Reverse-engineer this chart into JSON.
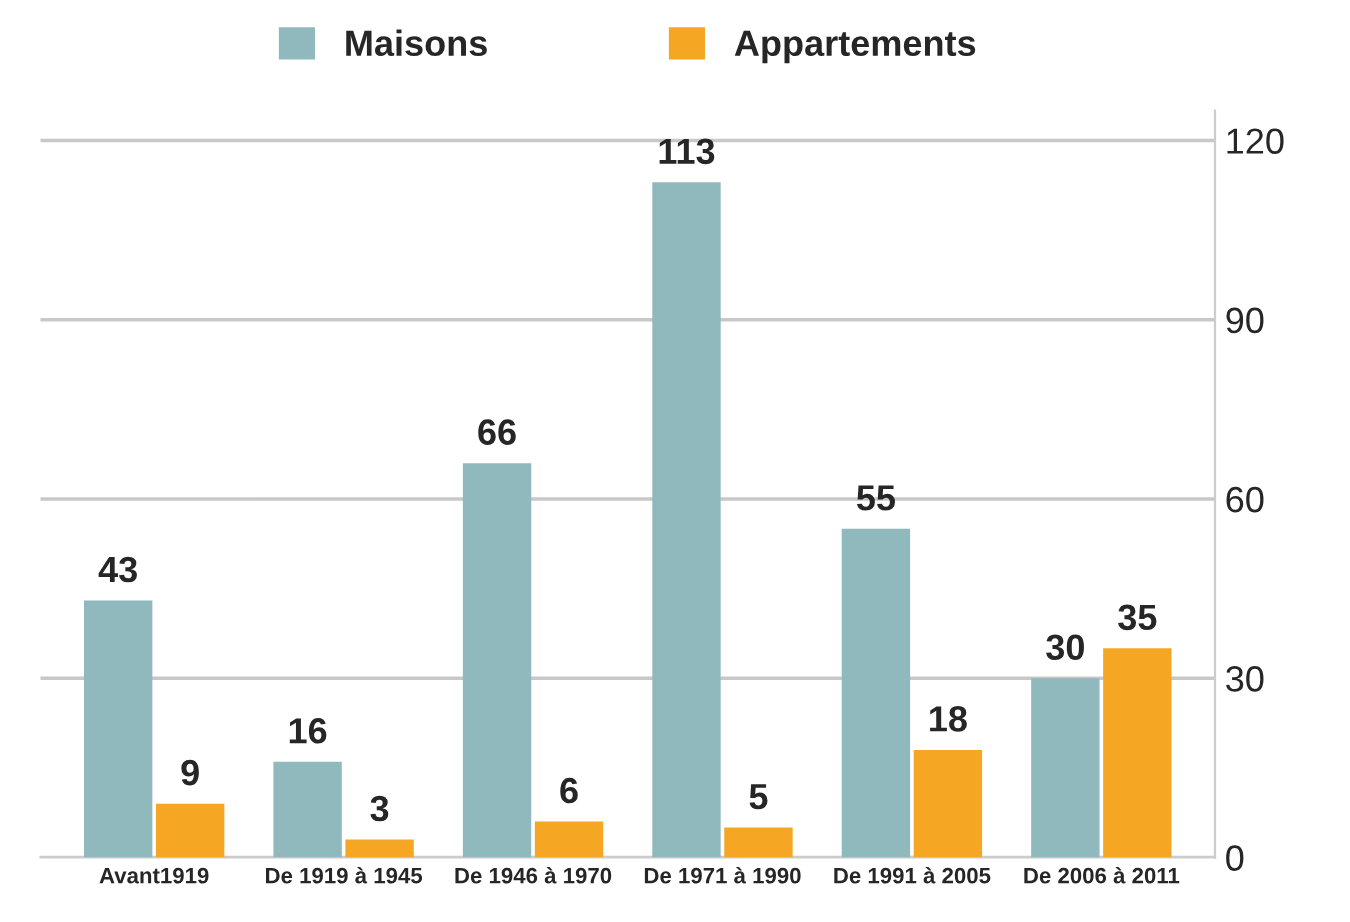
{
  "chart_data": {
    "type": "bar",
    "categories": [
      "Avant1919",
      "De 1919 à 1945",
      "De 1946 à 1970",
      "De 1971 à 1990",
      "De 1991 à 2005",
      "De 2006 à 2011"
    ],
    "series": [
      {
        "name": "Maisons",
        "color": "#8fb9bd",
        "values": [
          43,
          16,
          66,
          113,
          55,
          30
        ]
      },
      {
        "name": "Appartements",
        "color": "#f5a623",
        "values": [
          9,
          3,
          6,
          5,
          18,
          35
        ]
      }
    ],
    "ylim": [
      0,
      125
    ],
    "yticks": [
      0,
      30,
      60,
      90,
      120
    ],
    "grid": "y",
    "legend": "top",
    "data_labels": true
  }
}
